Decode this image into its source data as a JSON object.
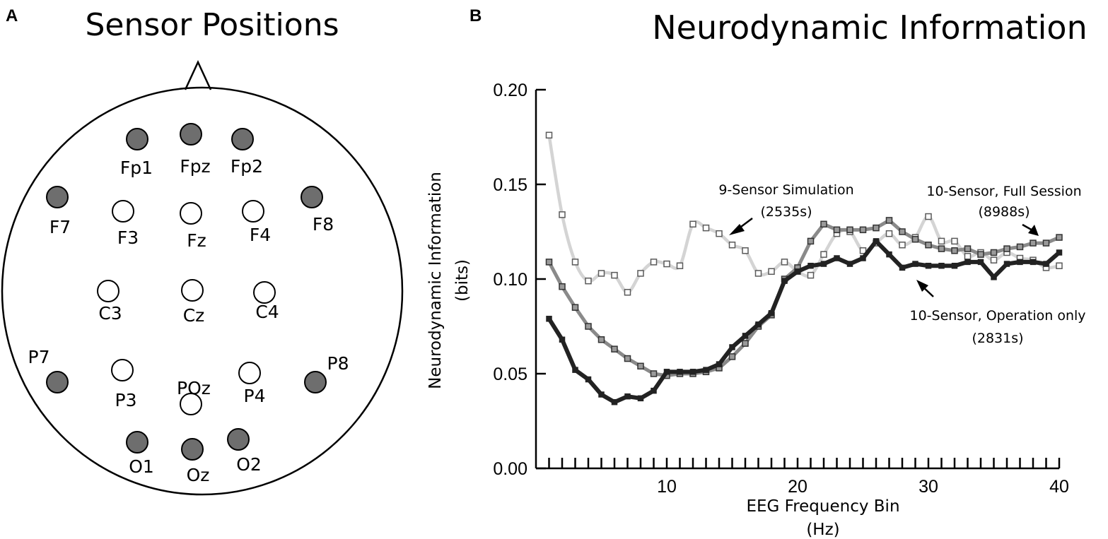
{
  "panel_a": {
    "letter": "A",
    "title": "Sensor Positions",
    "sensors": [
      {
        "label": "Fp1",
        "type": "filled"
      },
      {
        "label": "Fpz",
        "type": "filled"
      },
      {
        "label": "Fp2",
        "type": "filled"
      },
      {
        "label": "F7",
        "type": "filled"
      },
      {
        "label": "F3",
        "type": "open"
      },
      {
        "label": "Fz",
        "type": "open"
      },
      {
        "label": "F4",
        "type": "open"
      },
      {
        "label": "F8",
        "type": "filled"
      },
      {
        "label": "C3",
        "type": "open"
      },
      {
        "label": "Cz",
        "type": "open"
      },
      {
        "label": "C4",
        "type": "open"
      },
      {
        "label": "P7",
        "type": "filled"
      },
      {
        "label": "P3",
        "type": "open"
      },
      {
        "label": "POz",
        "type": "open"
      },
      {
        "label": "P4",
        "type": "open"
      },
      {
        "label": "P8",
        "type": "filled"
      },
      {
        "label": "O1",
        "type": "filled"
      },
      {
        "label": "Oz",
        "type": "filled"
      },
      {
        "label": "O2",
        "type": "filled"
      }
    ]
  },
  "colors": {
    "filled_sensor": "#6e6e6e",
    "series_simulation": "#d4d4d4",
    "series_full": "#8a8a8a",
    "series_operation": "#222222"
  },
  "chart_data": {
    "letter": "B",
    "type": "line",
    "title": "Neurodynamic Information",
    "xlabel": "EEG Frequency Bin",
    "xlabel_units": "(Hz)",
    "ylabel": "Neurodynamic Information",
    "ylabel_units": "(bits)",
    "xlim": [
      0,
      40
    ],
    "ylim": [
      0,
      0.2
    ],
    "xticks": [
      10,
      20,
      30,
      40
    ],
    "xtick_labels": [
      "10",
      "20",
      "30",
      "40"
    ],
    "yticks": [
      0,
      0.05,
      0.1,
      0.15,
      0.2
    ],
    "ytick_labels": [
      "0.00",
      "0.05",
      "0.10",
      "0.15",
      "0.20"
    ],
    "x": [
      1,
      2,
      3,
      4,
      5,
      6,
      7,
      8,
      9,
      10,
      11,
      12,
      13,
      14,
      15,
      16,
      17,
      18,
      19,
      20,
      21,
      22,
      23,
      24,
      25,
      26,
      27,
      28,
      29,
      30,
      31,
      32,
      33,
      34,
      35,
      36,
      37,
      38,
      39,
      40
    ],
    "series": [
      {
        "name": "9-Sensor Simulation",
        "values": [
          0.176,
          0.134,
          0.109,
          0.099,
          0.103,
          0.102,
          0.093,
          0.103,
          0.109,
          0.108,
          0.107,
          0.129,
          0.127,
          0.124,
          0.118,
          0.115,
          0.103,
          0.104,
          0.109,
          0.104,
          0.102,
          0.113,
          0.124,
          0.125,
          0.115,
          0.119,
          0.124,
          0.118,
          0.122,
          0.133,
          0.12,
          0.12,
          0.112,
          0.114,
          0.11,
          0.114,
          0.111,
          0.11,
          0.106,
          0.107
        ]
      },
      {
        "name": "10-Sensor, Full Session",
        "values": [
          0.109,
          0.096,
          0.085,
          0.075,
          0.068,
          0.063,
          0.058,
          0.054,
          0.05,
          0.049,
          0.05,
          0.05,
          0.051,
          0.053,
          0.059,
          0.066,
          0.075,
          0.081,
          0.1,
          0.106,
          0.12,
          0.129,
          0.126,
          0.126,
          0.126,
          0.127,
          0.131,
          0.125,
          0.121,
          0.118,
          0.116,
          0.115,
          0.116,
          0.113,
          0.114,
          0.116,
          0.117,
          0.119,
          0.119,
          0.122
        ]
      },
      {
        "name": "10-Sensor, Operation only",
        "values": [
          0.079,
          0.068,
          0.052,
          0.047,
          0.039,
          0.035,
          0.038,
          0.037,
          0.041,
          0.051,
          0.051,
          0.051,
          0.052,
          0.055,
          0.064,
          0.07,
          0.076,
          0.082,
          0.099,
          0.104,
          0.107,
          0.108,
          0.111,
          0.108,
          0.111,
          0.12,
          0.113,
          0.106,
          0.108,
          0.107,
          0.107,
          0.107,
          0.109,
          0.109,
          0.101,
          0.108,
          0.109,
          0.109,
          0.108,
          0.114
        ]
      }
    ],
    "annotations": [
      {
        "text": "9-Sensor Simulation",
        "sub": "(2535s)"
      },
      {
        "text": "10-Sensor, Full Session",
        "sub": "(8988s)"
      },
      {
        "text": "10-Sensor, Operation only",
        "sub": "(2831s)"
      }
    ]
  }
}
